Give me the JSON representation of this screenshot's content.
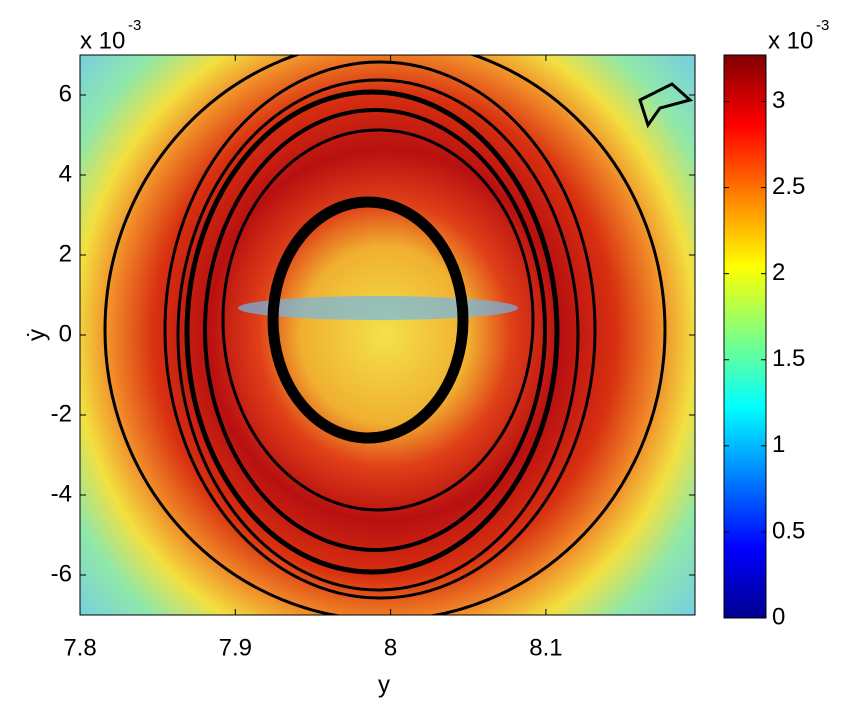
{
  "chart_data": {
    "type": "contour",
    "xlabel": "y",
    "ylabel": "ẏ",
    "xlim": [
      7.8,
      8.196
    ],
    "xticks": [
      7.8,
      7.9,
      8,
      8.1
    ],
    "ylim": [
      -7,
      7
    ],
    "yticks": [
      -6,
      -4,
      -2,
      0,
      2,
      4,
      6
    ],
    "y_multiplier": "x 10",
    "y_exponent": "-3",
    "colorbar": {
      "lim": [
        0,
        3.27
      ],
      "ticks": [
        0,
        0.5,
        1,
        1.5,
        2,
        2.5,
        3
      ],
      "multiplier": "x 10",
      "exponent": "-3",
      "colormap": [
        "#00008f",
        "#0000ff",
        "#0080ff",
        "#00ffff",
        "#80ff80",
        "#ffff00",
        "#ff8000",
        "#ff0000",
        "#800000"
      ]
    }
  }
}
